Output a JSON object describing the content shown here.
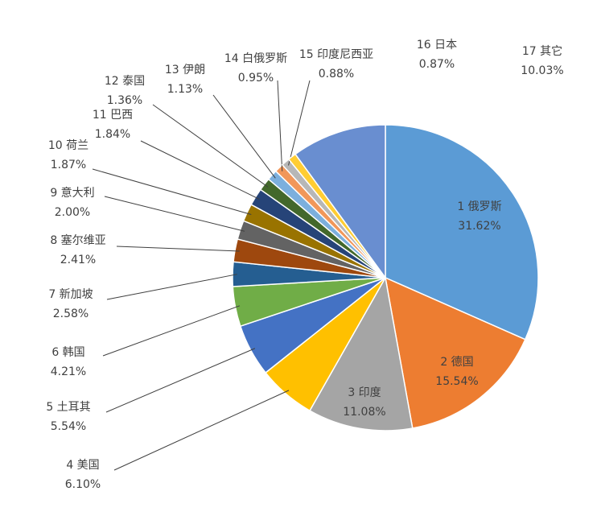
{
  "chart_data": {
    "type": "pie",
    "categories": [
      "1 俄罗斯",
      "2 德国",
      "3 印度",
      "4 美国",
      "5 土耳其",
      "6 韩国",
      "7 新加坡",
      "8 塞尔维亚",
      "9 意大利",
      "10 荷兰",
      "11 巴西",
      "12 泰国",
      "13 伊朗",
      "14 白俄罗斯",
      "15 印度尼西亚",
      "16 日本",
      "17 其它"
    ],
    "values": [
      31.62,
      15.54,
      11.08,
      6.1,
      5.54,
      4.21,
      2.58,
      2.41,
      2.0,
      1.87,
      1.84,
      1.36,
      1.13,
      0.95,
      0.88,
      0.87,
      10.03
    ],
    "value_labels": [
      "31.62%",
      "15.54%",
      "11.08%",
      "6.10%",
      "5.54%",
      "4.21%",
      "2.58%",
      "2.41%",
      "2.00%",
      "1.87%",
      "1.84%",
      "1.36%",
      "1.13%",
      "0.95%",
      "0.88%",
      "0.87%",
      "10.03%"
    ],
    "colors": [
      "#5b9bd5",
      "#ed7d31",
      "#a5a5a5",
      "#ffc000",
      "#4472c4",
      "#70ad47",
      "#255e91",
      "#9e480e",
      "#636363",
      "#997300",
      "#264478",
      "#43682b",
      "#7cafdd",
      "#f1975a",
      "#b7b7b7",
      "#ffcd33",
      "#698ed0"
    ]
  }
}
